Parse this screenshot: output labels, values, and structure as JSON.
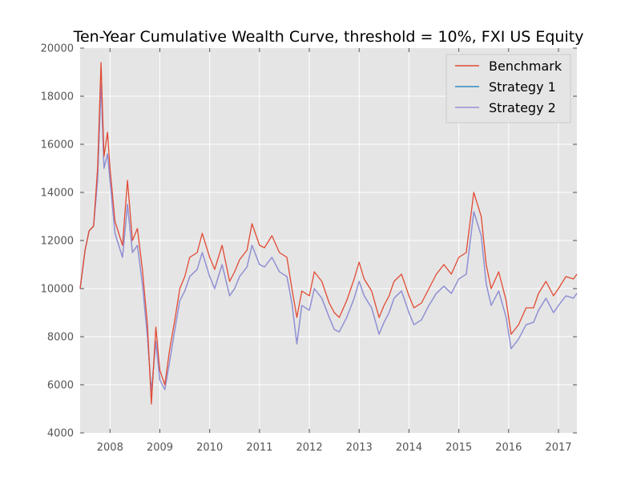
{
  "chart_data": {
    "type": "line",
    "title": "Ten-Year Cumulative Wealth Curve, threshold = 10%, FXI US Equity",
    "xlabel": "",
    "ylabel": "",
    "xlim": [
      2007.4,
      2017.37
    ],
    "ylim": [
      4000,
      20000
    ],
    "x_ticks": [
      2008,
      2009,
      2010,
      2011,
      2012,
      2013,
      2014,
      2015,
      2016,
      2017
    ],
    "x_tick_labels": [
      "2008",
      "2009",
      "2010",
      "2011",
      "2012",
      "2013",
      "2014",
      "2015",
      "2016",
      "2017"
    ],
    "y_ticks": [
      4000,
      6000,
      8000,
      10000,
      12000,
      14000,
      16000,
      18000,
      20000
    ],
    "y_tick_labels": [
      "4000",
      "6000",
      "8000",
      "10000",
      "12000",
      "14000",
      "16000",
      "18000",
      "20000"
    ],
    "grid": true,
    "legend_position": "top-right",
    "series": [
      {
        "name": "Benchmark",
        "color": "#E24A33",
        "points": [
          [
            2007.4,
            10000
          ],
          [
            2007.5,
            11600
          ],
          [
            2007.58,
            12400
          ],
          [
            2007.67,
            12600
          ],
          [
            2007.75,
            15000
          ],
          [
            2007.82,
            19400
          ],
          [
            2007.88,
            15500
          ],
          [
            2007.95,
            16500
          ],
          [
            2008.0,
            15000
          ],
          [
            2008.1,
            12800
          ],
          [
            2008.25,
            11800
          ],
          [
            2008.35,
            14500
          ],
          [
            2008.45,
            12000
          ],
          [
            2008.55,
            12500
          ],
          [
            2008.65,
            10800
          ],
          [
            2008.75,
            8500
          ],
          [
            2008.83,
            5200
          ],
          [
            2008.92,
            8400
          ],
          [
            2009.0,
            6600
          ],
          [
            2009.1,
            6000
          ],
          [
            2009.2,
            7500
          ],
          [
            2009.3,
            8700
          ],
          [
            2009.4,
            10000
          ],
          [
            2009.5,
            10500
          ],
          [
            2009.6,
            11300
          ],
          [
            2009.75,
            11500
          ],
          [
            2009.85,
            12300
          ],
          [
            2010.0,
            11300
          ],
          [
            2010.1,
            10800
          ],
          [
            2010.25,
            11800
          ],
          [
            2010.4,
            10300
          ],
          [
            2010.5,
            10700
          ],
          [
            2010.6,
            11200
          ],
          [
            2010.75,
            11600
          ],
          [
            2010.85,
            12700
          ],
          [
            2011.0,
            11800
          ],
          [
            2011.1,
            11700
          ],
          [
            2011.25,
            12200
          ],
          [
            2011.4,
            11500
          ],
          [
            2011.55,
            11300
          ],
          [
            2011.65,
            10000
          ],
          [
            2011.75,
            8800
          ],
          [
            2011.85,
            9900
          ],
          [
            2012.0,
            9700
          ],
          [
            2012.1,
            10700
          ],
          [
            2012.25,
            10300
          ],
          [
            2012.4,
            9400
          ],
          [
            2012.5,
            9000
          ],
          [
            2012.6,
            8800
          ],
          [
            2012.75,
            9500
          ],
          [
            2012.9,
            10400
          ],
          [
            2013.0,
            11100
          ],
          [
            2013.1,
            10400
          ],
          [
            2013.25,
            9900
          ],
          [
            2013.4,
            8800
          ],
          [
            2013.5,
            9300
          ],
          [
            2013.6,
            9700
          ],
          [
            2013.7,
            10300
          ],
          [
            2013.85,
            10600
          ],
          [
            2014.0,
            9700
          ],
          [
            2014.1,
            9200
          ],
          [
            2014.25,
            9400
          ],
          [
            2014.4,
            10000
          ],
          [
            2014.55,
            10600
          ],
          [
            2014.7,
            11000
          ],
          [
            2014.85,
            10600
          ],
          [
            2015.0,
            11300
          ],
          [
            2015.15,
            11500
          ],
          [
            2015.3,
            14000
          ],
          [
            2015.45,
            13000
          ],
          [
            2015.55,
            11000
          ],
          [
            2015.65,
            10000
          ],
          [
            2015.8,
            10700
          ],
          [
            2015.95,
            9500
          ],
          [
            2016.05,
            8100
          ],
          [
            2016.2,
            8500
          ],
          [
            2016.35,
            9200
          ],
          [
            2016.5,
            9200
          ],
          [
            2016.6,
            9800
          ],
          [
            2016.75,
            10300
          ],
          [
            2016.9,
            9700
          ],
          [
            2017.0,
            10000
          ],
          [
            2017.15,
            10500
          ],
          [
            2017.3,
            10400
          ],
          [
            2017.37,
            10600
          ]
        ]
      },
      {
        "name": "Strategy 1",
        "color": "#348ABD",
        "points": [
          [
            2007.4,
            10000
          ],
          [
            2007.5,
            11600
          ],
          [
            2007.58,
            12400
          ],
          [
            2007.67,
            12600
          ],
          [
            2007.75,
            14500
          ],
          [
            2007.82,
            18500
          ],
          [
            2007.88,
            15000
          ],
          [
            2007.95,
            15600
          ],
          [
            2008.0,
            14500
          ],
          [
            2008.1,
            12300
          ],
          [
            2008.25,
            11300
          ],
          [
            2008.35,
            13500
          ],
          [
            2008.45,
            11500
          ],
          [
            2008.55,
            11800
          ],
          [
            2008.65,
            10200
          ],
          [
            2008.75,
            8000
          ],
          [
            2008.83,
            5700
          ],
          [
            2008.92,
            7800
          ],
          [
            2009.0,
            6200
          ],
          [
            2009.1,
            5800
          ],
          [
            2009.2,
            7000
          ],
          [
            2009.3,
            8300
          ],
          [
            2009.4,
            9500
          ],
          [
            2009.5,
            9900
          ],
          [
            2009.6,
            10500
          ],
          [
            2009.75,
            10800
          ],
          [
            2009.85,
            11500
          ],
          [
            2010.0,
            10500
          ],
          [
            2010.1,
            10000
          ],
          [
            2010.25,
            11000
          ],
          [
            2010.4,
            9700
          ],
          [
            2010.5,
            10000
          ],
          [
            2010.6,
            10500
          ],
          [
            2010.75,
            10900
          ],
          [
            2010.85,
            11800
          ],
          [
            2011.0,
            11000
          ],
          [
            2011.1,
            10900
          ],
          [
            2011.25,
            11300
          ],
          [
            2011.4,
            10700
          ],
          [
            2011.55,
            10500
          ],
          [
            2011.65,
            9400
          ],
          [
            2011.75,
            7700
          ],
          [
            2011.85,
            9300
          ],
          [
            2012.0,
            9100
          ],
          [
            2012.1,
            10000
          ],
          [
            2012.25,
            9600
          ],
          [
            2012.4,
            8800
          ],
          [
            2012.5,
            8300
          ],
          [
            2012.6,
            8200
          ],
          [
            2012.75,
            8800
          ],
          [
            2012.9,
            9600
          ],
          [
            2013.0,
            10300
          ],
          [
            2013.1,
            9700
          ],
          [
            2013.25,
            9200
          ],
          [
            2013.4,
            8100
          ],
          [
            2013.5,
            8600
          ],
          [
            2013.6,
            9000
          ],
          [
            2013.7,
            9600
          ],
          [
            2013.85,
            9900
          ],
          [
            2014.0,
            9000
          ],
          [
            2014.1,
            8500
          ],
          [
            2014.25,
            8700
          ],
          [
            2014.4,
            9300
          ],
          [
            2014.55,
            9800
          ],
          [
            2014.7,
            10100
          ],
          [
            2014.85,
            9800
          ],
          [
            2015.0,
            10400
          ],
          [
            2015.15,
            10600
          ],
          [
            2015.3,
            13200
          ],
          [
            2015.45,
            12200
          ],
          [
            2015.55,
            10200
          ],
          [
            2015.65,
            9300
          ],
          [
            2015.8,
            9900
          ],
          [
            2015.95,
            8800
          ],
          [
            2016.05,
            7500
          ],
          [
            2016.2,
            7900
          ],
          [
            2016.35,
            8500
          ],
          [
            2016.5,
            8600
          ],
          [
            2016.6,
            9100
          ],
          [
            2016.75,
            9600
          ],
          [
            2016.9,
            9000
          ],
          [
            2017.0,
            9300
          ],
          [
            2017.15,
            9700
          ],
          [
            2017.3,
            9600
          ],
          [
            2017.37,
            9800
          ]
        ]
      },
      {
        "name": "Strategy 2",
        "color": "#988ED5",
        "points": [
          [
            2007.4,
            10000
          ],
          [
            2007.5,
            11600
          ],
          [
            2007.58,
            12400
          ],
          [
            2007.67,
            12600
          ],
          [
            2007.75,
            14500
          ],
          [
            2007.82,
            18500
          ],
          [
            2007.88,
            15000
          ],
          [
            2007.95,
            15600
          ],
          [
            2008.0,
            14500
          ],
          [
            2008.1,
            12300
          ],
          [
            2008.25,
            11300
          ],
          [
            2008.35,
            13500
          ],
          [
            2008.45,
            11500
          ],
          [
            2008.55,
            11800
          ],
          [
            2008.65,
            10200
          ],
          [
            2008.75,
            8000
          ],
          [
            2008.83,
            5700
          ],
          [
            2008.92,
            7800
          ],
          [
            2009.0,
            6200
          ],
          [
            2009.1,
            5800
          ],
          [
            2009.2,
            7000
          ],
          [
            2009.3,
            8300
          ],
          [
            2009.4,
            9500
          ],
          [
            2009.5,
            9900
          ],
          [
            2009.6,
            10500
          ],
          [
            2009.75,
            10800
          ],
          [
            2009.85,
            11500
          ],
          [
            2010.0,
            10500
          ],
          [
            2010.1,
            10000
          ],
          [
            2010.25,
            11000
          ],
          [
            2010.4,
            9700
          ],
          [
            2010.5,
            10000
          ],
          [
            2010.6,
            10500
          ],
          [
            2010.75,
            10900
          ],
          [
            2010.85,
            11800
          ],
          [
            2011.0,
            11000
          ],
          [
            2011.1,
            10900
          ],
          [
            2011.25,
            11300
          ],
          [
            2011.4,
            10700
          ],
          [
            2011.55,
            10500
          ],
          [
            2011.65,
            9400
          ],
          [
            2011.75,
            7700
          ],
          [
            2011.85,
            9300
          ],
          [
            2012.0,
            9100
          ],
          [
            2012.1,
            10000
          ],
          [
            2012.25,
            9600
          ],
          [
            2012.4,
            8800
          ],
          [
            2012.5,
            8300
          ],
          [
            2012.6,
            8200
          ],
          [
            2012.75,
            8800
          ],
          [
            2012.9,
            9600
          ],
          [
            2013.0,
            10300
          ],
          [
            2013.1,
            9700
          ],
          [
            2013.25,
            9200
          ],
          [
            2013.4,
            8100
          ],
          [
            2013.5,
            8600
          ],
          [
            2013.6,
            9000
          ],
          [
            2013.7,
            9600
          ],
          [
            2013.85,
            9900
          ],
          [
            2014.0,
            9000
          ],
          [
            2014.1,
            8500
          ],
          [
            2014.25,
            8700
          ],
          [
            2014.4,
            9300
          ],
          [
            2014.55,
            9800
          ],
          [
            2014.7,
            10100
          ],
          [
            2014.85,
            9800
          ],
          [
            2015.0,
            10400
          ],
          [
            2015.15,
            10600
          ],
          [
            2015.3,
            13200
          ],
          [
            2015.45,
            12200
          ],
          [
            2015.55,
            10200
          ],
          [
            2015.65,
            9300
          ],
          [
            2015.8,
            9900
          ],
          [
            2015.95,
            8800
          ],
          [
            2016.05,
            7500
          ],
          [
            2016.2,
            7900
          ],
          [
            2016.35,
            8500
          ],
          [
            2016.5,
            8600
          ],
          [
            2016.6,
            9100
          ],
          [
            2016.75,
            9600
          ],
          [
            2016.9,
            9000
          ],
          [
            2017.0,
            9300
          ],
          [
            2017.15,
            9700
          ],
          [
            2017.3,
            9600
          ],
          [
            2017.37,
            9800
          ]
        ]
      }
    ]
  },
  "colors": {
    "plot_background": "#E5E5E5",
    "grid": "#FFFFFF",
    "tick_text": "#555555",
    "legend_border": "#CCCCCC"
  }
}
